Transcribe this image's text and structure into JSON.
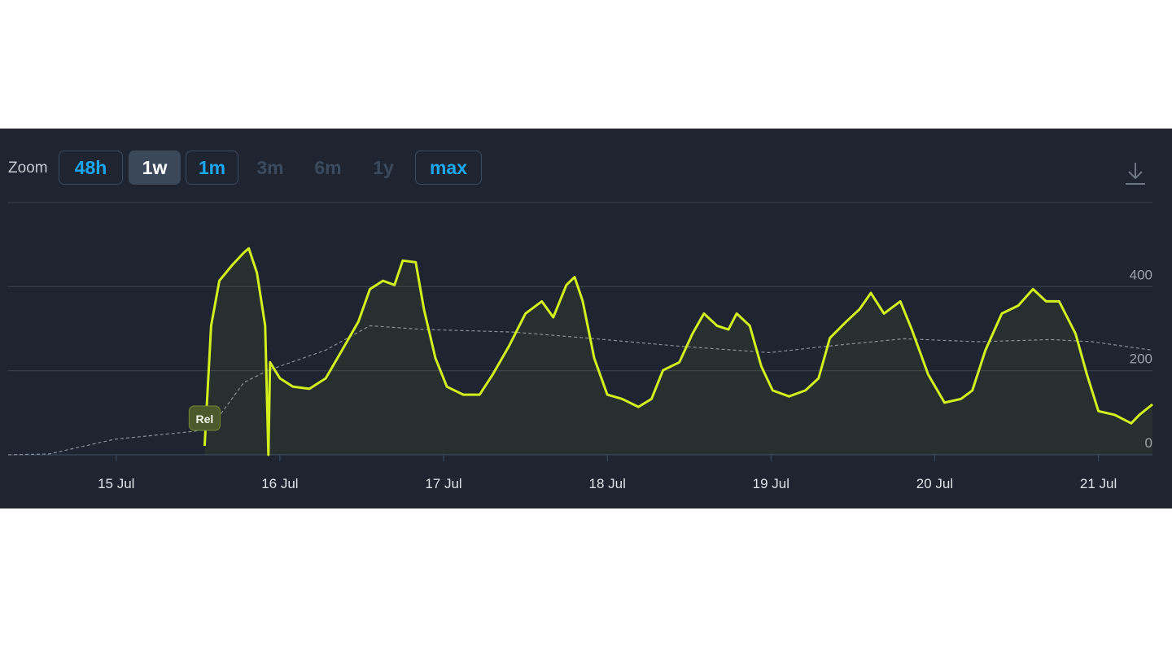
{
  "toolbar": {
    "label": "Zoom",
    "buttons": [
      {
        "label": "48h",
        "active": false,
        "disabled": false
      },
      {
        "label": "1w",
        "active": true,
        "disabled": false
      },
      {
        "label": "1m",
        "active": false,
        "disabled": false
      },
      {
        "label": "3m",
        "active": false,
        "disabled": true
      },
      {
        "label": "6m",
        "active": false,
        "disabled": true
      },
      {
        "label": "1y",
        "active": false,
        "disabled": true
      },
      {
        "label": "max",
        "active": false,
        "disabled": false
      }
    ]
  },
  "chart_data": {
    "type": "line",
    "xlim": [
      14.34,
      21.33
    ],
    "xticks": [
      {
        "value": 15,
        "label": "15 Jul"
      },
      {
        "value": 16,
        "label": "16 Jul"
      },
      {
        "value": 17,
        "label": "17 Jul"
      },
      {
        "value": 18,
        "label": "18 Jul"
      },
      {
        "value": 19,
        "label": "19 Jul"
      },
      {
        "value": 20,
        "label": "20 Jul"
      },
      {
        "value": 21,
        "label": "21 Jul"
      }
    ],
    "ylim": [
      0,
      600
    ],
    "yticks": [
      0,
      200,
      400
    ],
    "grid": true,
    "series": [
      {
        "color": "#d2f01e",
        "dashed": false,
        "area": true,
        "x": [
          15.54,
          15.58,
          15.63,
          15.71,
          15.78,
          15.81,
          15.86,
          15.91,
          15.93,
          15.94,
          16.0,
          16.08,
          16.18,
          16.28,
          16.38,
          16.48,
          16.55,
          16.63,
          16.7,
          16.75,
          16.83,
          16.88,
          16.95,
          17.02,
          17.12,
          17.22,
          17.3,
          17.4,
          17.5,
          17.6,
          17.67,
          17.75,
          17.8,
          17.85,
          17.92,
          18.0,
          18.09,
          18.19,
          18.27,
          18.34,
          18.44,
          18.52,
          18.59,
          18.67,
          18.74,
          18.79,
          18.87,
          18.94,
          19.01,
          19.11,
          19.21,
          19.29,
          19.36,
          19.46,
          19.54,
          19.61,
          19.69,
          19.79,
          19.86,
          19.96,
          20.06,
          20.16,
          20.23,
          20.31,
          20.41,
          20.51,
          20.6,
          20.68,
          20.76,
          20.86,
          20.93,
          21.0,
          21.1,
          21.2,
          21.25,
          21.33
        ],
        "values": [
          21,
          307,
          414,
          452,
          481,
          491,
          433,
          307,
          0,
          220,
          182,
          162,
          157,
          182,
          249,
          317,
          394,
          414,
          404,
          462,
          458,
          346,
          230,
          162,
          143,
          143,
          191,
          259,
          336,
          365,
          327,
          404,
          423,
          365,
          230,
          143,
          133,
          114,
          133,
          201,
          220,
          288,
          336,
          307,
          298,
          336,
          307,
          211,
          153,
          139,
          153,
          182,
          278,
          317,
          346,
          385,
          336,
          365,
          298,
          191,
          124,
          133,
          153,
          249,
          336,
          355,
          394,
          365,
          365,
          288,
          191,
          104,
          95,
          75,
          95,
          120
        ]
      },
      {
        "color": "#8a8f96",
        "dashed": true,
        "area": false,
        "x": [
          14.34,
          14.59,
          14.99,
          15.48,
          15.58,
          15.78,
          15.93,
          16.28,
          16.55,
          16.88,
          17.42,
          17.87,
          18.42,
          18.99,
          19.36,
          19.81,
          20.26,
          20.71,
          20.96,
          21.33
        ],
        "values": [
          0,
          2,
          37,
          56,
          66,
          172,
          201,
          249,
          307,
          298,
          292,
          278,
          259,
          243,
          259,
          276,
          269,
          274,
          269,
          249
        ]
      }
    ],
    "annotations": [
      {
        "x": 15.54,
        "label": "Rel"
      }
    ]
  }
}
